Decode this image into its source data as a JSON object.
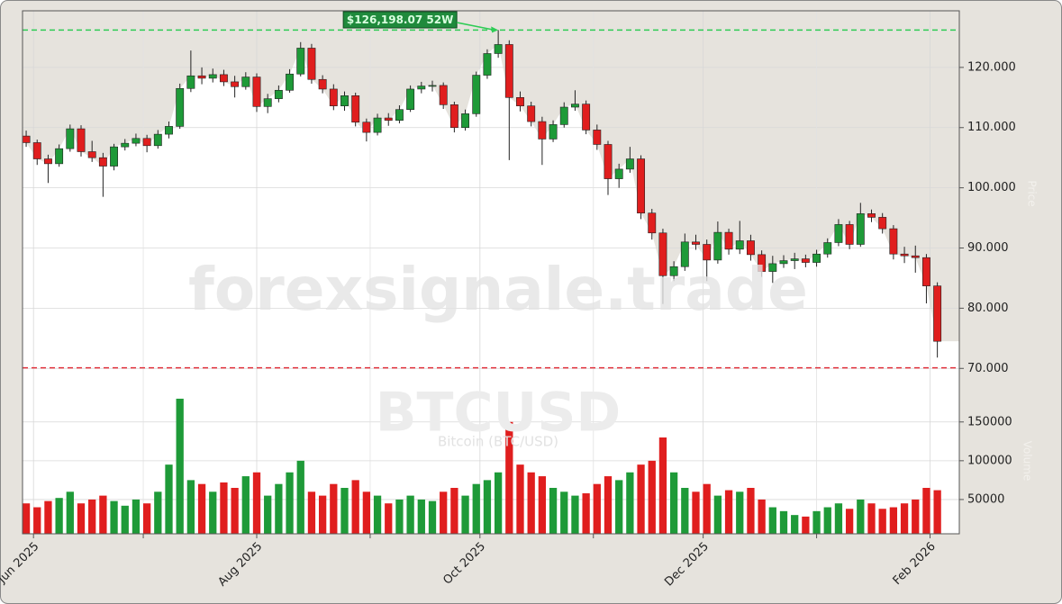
{
  "chart_data": {
    "type": "candlestick",
    "watermark": "forexsignale.trade",
    "symbol": "BTCUSD",
    "subtitle": "Bitcoin (BTC/USD)",
    "y_label": "Price",
    "volume_label": "Volume",
    "up_color": "#1e9a38",
    "down_color": "#e01e1e",
    "grid": true,
    "x": [
      -2,
      1,
      4,
      7,
      10,
      13,
      16,
      19,
      22,
      25,
      28,
      31,
      34,
      37,
      40,
      43,
      46,
      49,
      52,
      55,
      58,
      61,
      64,
      67,
      70,
      73,
      76,
      79,
      82,
      85,
      88,
      91,
      94,
      97,
      100,
      103,
      106,
      109,
      112,
      115,
      118,
      121,
      124,
      127,
      130,
      133,
      136,
      139,
      142,
      145,
      148,
      151,
      154,
      157,
      160,
      163,
      166,
      169,
      172,
      175,
      178,
      181,
      184,
      187,
      190,
      193,
      196,
      199,
      202,
      205,
      208,
      211,
      214,
      217,
      220,
      223,
      226,
      229,
      232,
      235,
      238,
      241,
      244,
      247
    ],
    "open": [
      108600,
      107500,
      104800,
      104000,
      106500,
      109800,
      106000,
      105000,
      103600,
      106800,
      107400,
      108200,
      107000,
      108900,
      110200,
      116500,
      118600,
      118200,
      118800,
      117600,
      116800,
      118400,
      113500,
      114800,
      116200,
      118900,
      123200,
      118000,
      116400,
      113600,
      115300,
      110900,
      109200,
      111600,
      111200,
      113000,
      116400,
      116900,
      117000,
      113800,
      110000,
      112300,
      118700,
      122300,
      123800,
      115000,
      113600,
      111000,
      108100,
      110500,
      113400,
      113900,
      109600,
      107200,
      101500,
      103100,
      104800,
      95800,
      92500,
      85400,
      86900,
      91000,
      90600,
      88000,
      92600,
      89800,
      91200,
      88900,
      86100,
      87400,
      87900,
      88200,
      87600,
      89000,
      90900,
      93900,
      90600,
      95700,
      95100,
      93200,
      89000,
      88700,
      88400,
      83700
    ],
    "high": [
      109500,
      108000,
      105500,
      107200,
      110500,
      110400,
      107800,
      105800,
      107300,
      108100,
      109000,
      108800,
      109600,
      111000,
      117300,
      122800,
      120000,
      119800,
      119600,
      118600,
      119200,
      119000,
      115600,
      117000,
      119700,
      124200,
      123900,
      118700,
      117200,
      116000,
      115800,
      111500,
      112300,
      112400,
      113700,
      117000,
      117600,
      117800,
      117500,
      114300,
      113000,
      119300,
      123000,
      126198.07,
      124500,
      116000,
      114300,
      111800,
      111200,
      114200,
      116200,
      114500,
      110500,
      107800,
      104000,
      106800,
      105400,
      96500,
      93200,
      87800,
      92400,
      92200,
      91400,
      94400,
      93200,
      94500,
      92200,
      89600,
      88700,
      88800,
      89200,
      88900,
      89700,
      91600,
      94800,
      94500,
      97500,
      96400,
      95800,
      93800,
      90200,
      90400,
      89000,
      84300
    ],
    "low": [
      106800,
      103800,
      100800,
      103500,
      106000,
      105200,
      104300,
      98500,
      102900,
      106200,
      106900,
      105900,
      106500,
      108200,
      109800,
      115900,
      117200,
      117500,
      116900,
      115000,
      116300,
      112600,
      112400,
      114200,
      115800,
      118500,
      117300,
      115700,
      112900,
      112800,
      110200,
      107700,
      108700,
      110300,
      110700,
      112600,
      115700,
      116000,
      113100,
      109200,
      109500,
      111800,
      118100,
      121600,
      104600,
      112700,
      110200,
      103800,
      107600,
      110000,
      112800,
      108900,
      106300,
      98800,
      100000,
      102500,
      94800,
      91400,
      80700,
      84500,
      86200,
      89700,
      84500,
      87400,
      88900,
      89000,
      87900,
      85200,
      84200,
      86700,
      86500,
      86800,
      86900,
      88400,
      90300,
      89800,
      90200,
      94300,
      92400,
      88100,
      87500,
      85900,
      80800,
      71800
    ],
    "close": [
      107500,
      104800,
      104000,
      106500,
      109800,
      106000,
      105000,
      103600,
      106800,
      107400,
      108200,
      107000,
      108900,
      110200,
      116500,
      118600,
      118200,
      118800,
      117600,
      116800,
      118400,
      113500,
      114800,
      116200,
      118900,
      123200,
      118000,
      116400,
      113600,
      115300,
      110900,
      109200,
      111600,
      111200,
      113000,
      116400,
      116900,
      117000,
      113800,
      110000,
      112300,
      118700,
      122300,
      123800,
      115000,
      113600,
      111000,
      108100,
      110500,
      113400,
      113900,
      109600,
      107200,
      101500,
      103100,
      104800,
      95800,
      92500,
      85400,
      86900,
      91000,
      90600,
      88000,
      92600,
      89800,
      91200,
      88900,
      86100,
      87400,
      87900,
      88200,
      87600,
      89000,
      90900,
      93900,
      90600,
      95700,
      95100,
      93200,
      89000,
      88700,
      88400,
      83700,
      74500
    ],
    "volume": [
      45000,
      40000,
      48000,
      52000,
      60000,
      45000,
      50000,
      55000,
      48000,
      42000,
      50000,
      45000,
      60000,
      95000,
      180000,
      75000,
      70000,
      60000,
      72000,
      65000,
      80000,
      85000,
      55000,
      70000,
      85000,
      100000,
      60000,
      55000,
      70000,
      65000,
      75000,
      60000,
      55000,
      45000,
      50000,
      55000,
      50000,
      48000,
      60000,
      65000,
      55000,
      70000,
      75000,
      85000,
      150000,
      95000,
      85000,
      80000,
      65000,
      60000,
      55000,
      58000,
      70000,
      80000,
      75000,
      85000,
      95000,
      100000,
      130000,
      85000,
      65000,
      60000,
      70000,
      55000,
      62000,
      60000,
      65000,
      50000,
      40000,
      35000,
      30000,
      28000,
      35000,
      40000,
      45000,
      38000,
      50000,
      45000,
      38000,
      40000,
      45000,
      50000,
      65000,
      62000
    ],
    "xlim": [
      -3,
      253
    ],
    "xticks": [
      {
        "value": 0,
        "label": "Jun 2025"
      },
      {
        "value": 61,
        "label": "Aug 2025"
      },
      {
        "value": 122,
        "label": "Oct 2025"
      },
      {
        "value": 183,
        "label": "Dec 2025"
      },
      {
        "value": 245,
        "label": "Feb 2026"
      }
    ],
    "x_minor_ticks": [
      30,
      92,
      153,
      214
    ],
    "ylim": [
      66900,
      129400
    ],
    "yticks": [
      {
        "value": 70000,
        "label": "70.000"
      },
      {
        "value": 80000,
        "label": "80.000"
      },
      {
        "value": 90000,
        "label": "90.000"
      },
      {
        "value": 100000,
        "label": "100.000"
      },
      {
        "value": 110000,
        "label": "110.000"
      },
      {
        "value": 120000,
        "label": "120.000"
      }
    ],
    "volume_ylim": [
      5800,
      195000
    ],
    "volume_yticks": [
      50000,
      100000,
      150000
    ],
    "lines": [
      {
        "value": 126198.07,
        "color": "#2ecc55",
        "label": "$126,198.07 52W"
      },
      {
        "value": 70100,
        "color": "#e0303a"
      }
    ]
  }
}
